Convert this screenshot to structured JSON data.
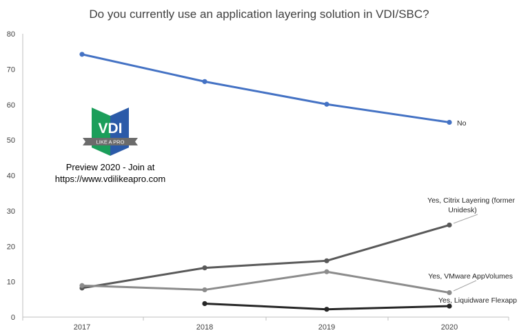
{
  "chart_data": {
    "type": "line",
    "title": "Do you currently use an application layering solution in VDI/SBC?",
    "xlabel": "",
    "ylabel": "",
    "categories": [
      "2017",
      "2018",
      "2019",
      "2020"
    ],
    "ylim": [
      0,
      80
    ],
    "yticks": [
      0,
      10,
      20,
      30,
      40,
      50,
      60,
      70,
      80
    ],
    "grid": false,
    "series": [
      {
        "name": "No",
        "values": [
          74.2,
          66.5,
          60.1,
          55.0
        ],
        "color": "#4472c4"
      },
      {
        "name": "Yes, Citrix Layering (former Unidesk)",
        "values": [
          8.2,
          13.9,
          15.9,
          26.0
        ],
        "color": "#595959"
      },
      {
        "name": "Yes, VMware AppVolumes",
        "values": [
          8.9,
          7.7,
          12.8,
          6.9
        ],
        "color": "#8c8c8c"
      },
      {
        "name": "Yes, Liquidware Flexapp",
        "values": [
          null,
          3.8,
          2.2,
          3.1
        ],
        "color": "#262626"
      }
    ],
    "labels": {
      "no": "No",
      "citrix_line1": "Yes, Citrix Layering (former",
      "citrix_line2": "Unidesk)",
      "vmware": "Yes, VMware AppVolumes",
      "liquidware": "Yes, Liquidware Flexapp"
    }
  },
  "watermark": {
    "logo_text": "VDI",
    "logo_subtext": "LIKE A PRO",
    "line1": "Preview 2020 - Join at",
    "line2": "https://www.vdilikeapro.com",
    "colors": {
      "green": "#1b9e5a",
      "blue": "#2b5aa8",
      "ribbon": "#6b6b6b"
    }
  }
}
